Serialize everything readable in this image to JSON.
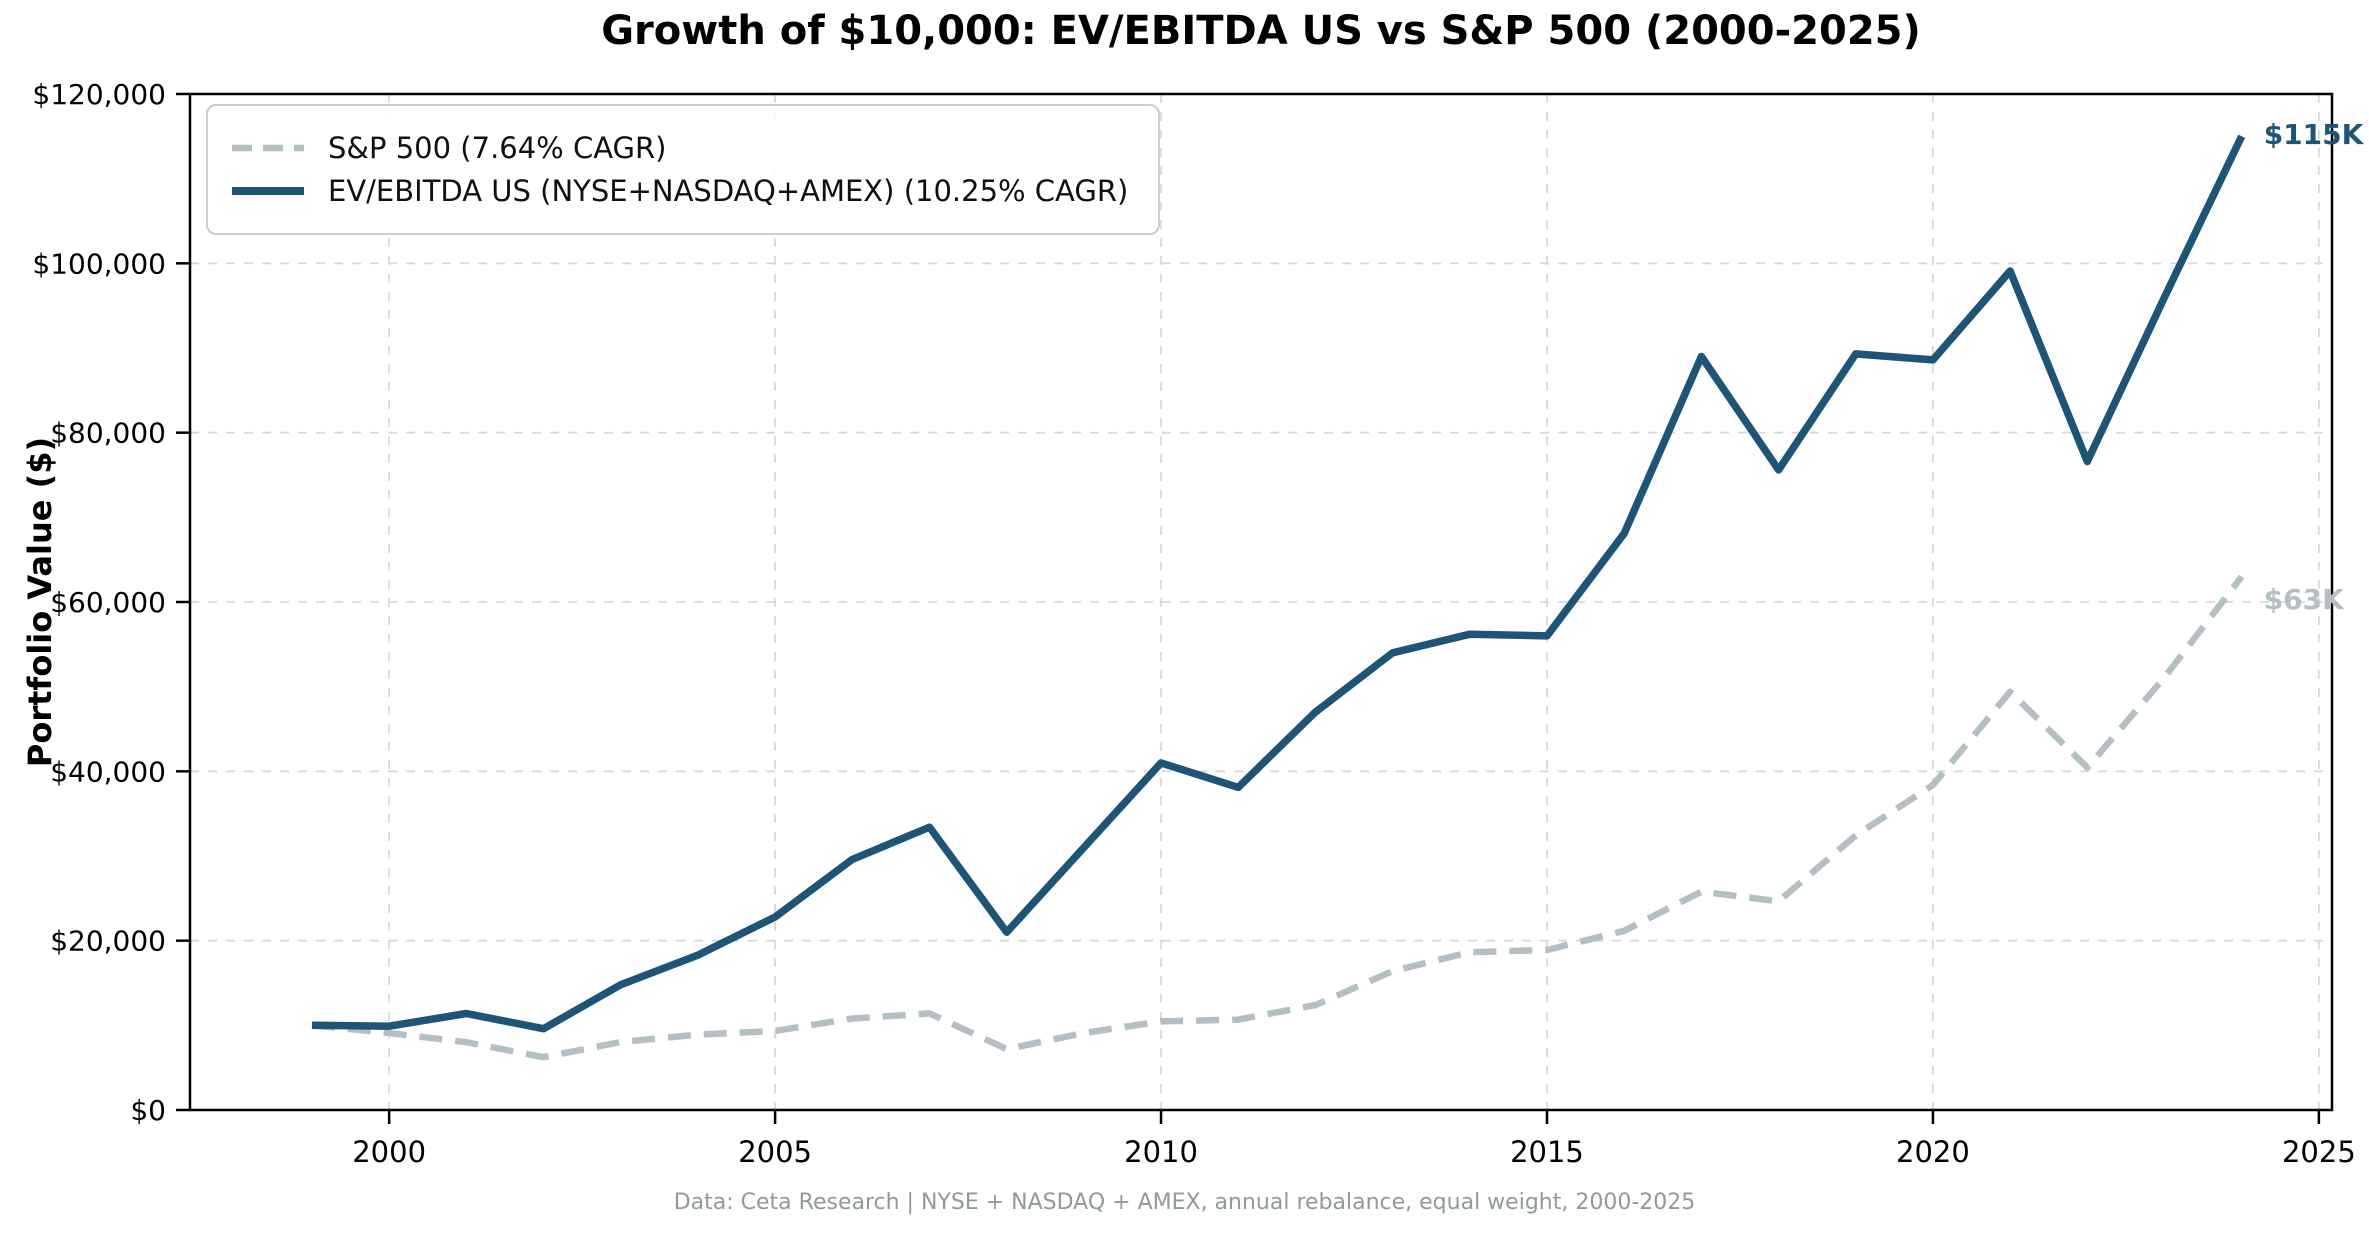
{
  "title": "Growth of $10,000: EV/EBITDA US vs S&P 500 (2000-2025)",
  "y_axis_label": "Portfolio Value ($)",
  "footer": "Data: Ceta Research | NYSE + NASDAQ + AMEX, annual rebalance, equal weight, 2000-2025",
  "end_labels": {
    "ev_ebitda": "$115K",
    "sp500": "$63K"
  },
  "colors": {
    "ev_ebitda": "#1e5577",
    "sp500": "#b4bfc3",
    "grid": "#d9d9d9",
    "axis": "#000000",
    "footer_text": "#8f9a9e",
    "legend_border": "#cccccc"
  },
  "chart_data": {
    "type": "line",
    "title": "Growth of $10,000: EV/EBITDA US vs S&P 500 (2000-2025)",
    "xlabel": "",
    "ylabel": "Portfolio Value ($)",
    "x": [
      1999,
      2000,
      2001,
      2002,
      2003,
      2004,
      2005,
      2006,
      2007,
      2008,
      2009,
      2010,
      2011,
      2012,
      2013,
      2014,
      2015,
      2016,
      2017,
      2018,
      2019,
      2020,
      2021,
      2022,
      2023,
      2024
    ],
    "series": [
      {
        "name": "S&P 500 (7.64% CAGR)",
        "style": "dashed",
        "color_key": "sp500",
        "values": [
          10000,
          9090,
          8010,
          6240,
          8030,
          8900,
          9340,
          10810,
          11410,
          7190,
          9090,
          10460,
          10680,
          12390,
          16400,
          18640,
          18900,
          21160,
          25780,
          24650,
          32420,
          38380,
          49400,
          40450,
          51090,
          63000
        ]
      },
      {
        "name": "EV/EBITDA US (NYSE+NASDAQ+AMEX) (10.25% CAGR)",
        "style": "solid",
        "color_key": "ev_ebitda",
        "values": [
          10000,
          9900,
          11400,
          9600,
          14800,
          18300,
          22800,
          29600,
          33400,
          21000,
          31000,
          41000,
          38100,
          47000,
          54000,
          56200,
          56000,
          68100,
          89000,
          75600,
          89300,
          88600,
          99100,
          76600,
          96000,
          115000
        ]
      }
    ],
    "xlim": [
      1997.42,
      2025.17
    ],
    "ylim": [
      0,
      120000
    ],
    "xticks": {
      "values": [
        2000,
        2005,
        2010,
        2015,
        2020,
        2025
      ],
      "labels": [
        "2000",
        "2005",
        "2010",
        "2015",
        "2020",
        "2025"
      ]
    },
    "yticks": {
      "values": [
        0,
        20000,
        40000,
        60000,
        80000,
        100000,
        120000
      ],
      "labels": [
        "$0",
        "$20,000",
        "$40,000",
        "$60,000",
        "$80,000",
        "$100,000",
        "$120,000"
      ]
    },
    "grid": true,
    "legend_position": "upper-left"
  }
}
